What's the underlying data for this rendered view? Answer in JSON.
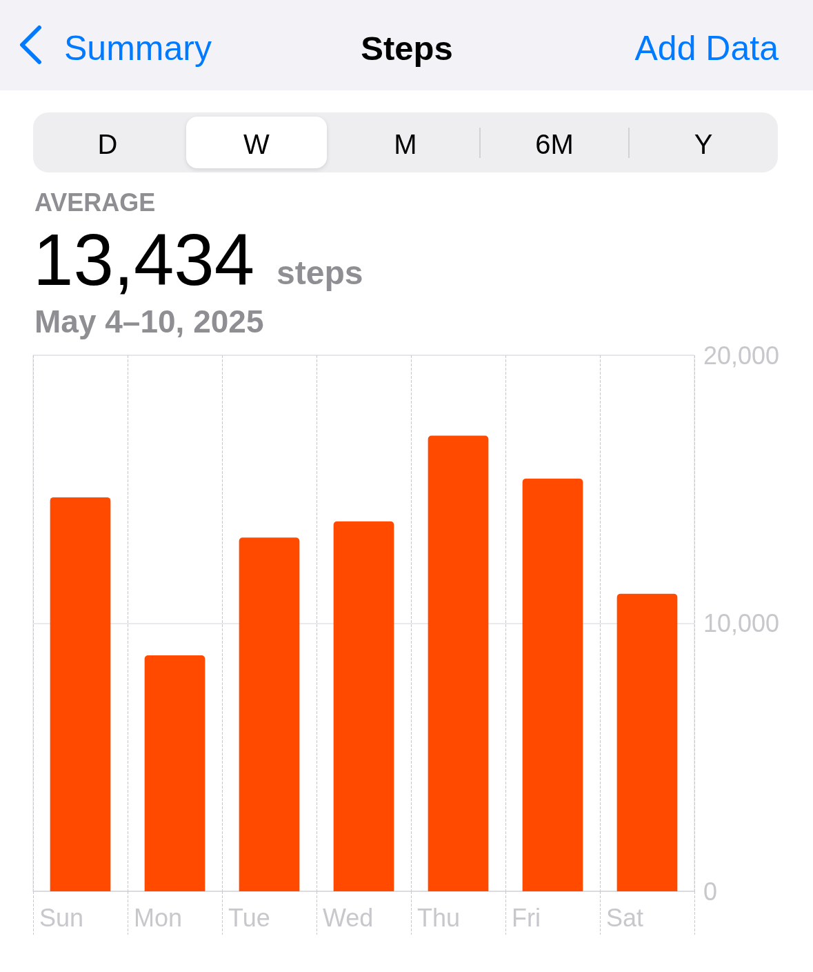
{
  "chart_data": {
    "type": "bar",
    "title": "Steps",
    "annotations": [
      "Summary",
      "Add Data",
      "D",
      "W",
      "M",
      "6M",
      "Y",
      "AVERAGE",
      "13,434",
      "steps",
      "May 4–10, 2025"
    ],
    "categories": [
      "Sun",
      "Mon",
      "Tue",
      "Wed",
      "Thu",
      "Fri",
      "Sat"
    ],
    "values": [
      14700,
      8800,
      13200,
      13800,
      17000,
      15400,
      11100
    ],
    "color": "#ff4a00",
    "ylim": [
      0,
      20000
    ],
    "yticks": [
      0,
      {
        "value": 10000,
        "label": "10,000"
      },
      {
        "value": 20000,
        "label": "20,000"
      }
    ],
    "grid": true
  }
}
